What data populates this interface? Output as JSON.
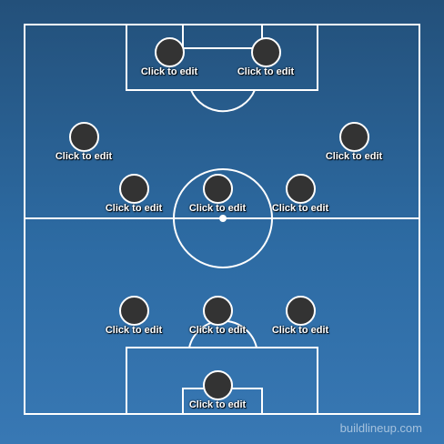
{
  "pitch": {
    "watermark": "buildlineup.com",
    "line_color": "#ffffff",
    "background_top": "#23507a",
    "background_bottom": "#3878b4",
    "player_color": "#333333"
  },
  "players": [
    {
      "label": "Click to edit"
    },
    {
      "label": "Click to edit"
    },
    {
      "label": "Click to edit"
    },
    {
      "label": "Click to edit"
    },
    {
      "label": "Click to edit"
    },
    {
      "label": "Click to edit"
    },
    {
      "label": "Click to edit"
    },
    {
      "label": "Click to edit"
    },
    {
      "label": "Click to edit"
    },
    {
      "label": "Click to edit"
    },
    {
      "label": "Click to edit"
    }
  ]
}
